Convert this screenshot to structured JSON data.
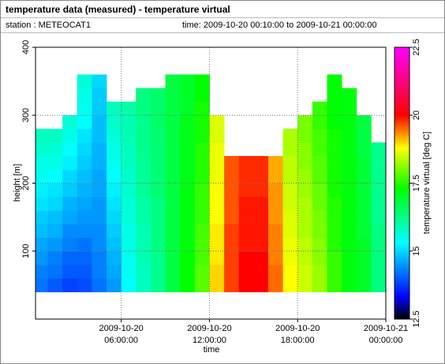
{
  "chart_data": {
    "type": "heatmap",
    "title": "temperature data (measured) - temperature virtual",
    "station": "station : METEOCAT1",
    "period": "time: 2009-10-20 00:10:00 to 2009-10-21 00:00:00",
    "xlabel": "time",
    "ylabel": "height [m]",
    "zlabel": "temperature virtual [deg C]",
    "x": [
      "2009-10-20 00:10:00",
      "2009-10-20 01:00:00",
      "2009-10-20 02:00:00",
      "2009-10-20 03:00:00",
      "2009-10-20 04:00:00",
      "2009-10-20 05:00:00",
      "2009-10-20 06:00:00",
      "2009-10-20 07:00:00",
      "2009-10-20 08:00:00",
      "2009-10-20 09:00:00",
      "2009-10-20 10:00:00",
      "2009-10-20 11:00:00",
      "2009-10-20 12:00:00",
      "2009-10-20 13:00:00",
      "2009-10-20 14:00:00",
      "2009-10-20 15:00:00",
      "2009-10-20 16:00:00",
      "2009-10-20 17:00:00",
      "2009-10-20 18:00:00",
      "2009-10-20 19:00:00",
      "2009-10-20 20:00:00",
      "2009-10-20 21:00:00",
      "2009-10-20 22:00:00",
      "2009-10-20 23:00:00",
      "2009-10-21 00:00:00"
    ],
    "y": [
      40,
      60,
      80,
      100,
      120,
      140,
      160,
      180,
      200,
      220,
      240,
      260,
      280,
      300,
      320,
      340,
      360
    ],
    "values": [
      [
        14.2,
        14.3,
        14.5,
        14.6,
        14.8,
        14.9,
        15.1,
        15.2,
        15.4,
        15.5,
        15.7,
        15.8,
        null,
        null,
        null,
        null
      ],
      [
        14.0,
        14.2,
        14.3,
        14.5,
        14.7,
        14.8,
        15.0,
        15.1,
        15.3,
        15.5,
        15.6,
        15.8,
        null,
        null,
        null,
        null
      ],
      [
        13.8,
        14.0,
        14.1,
        14.3,
        14.4,
        14.6,
        14.7,
        14.9,
        15.0,
        15.2,
        15.3,
        15.5,
        15.6,
        null,
        null,
        null
      ],
      [
        13.9,
        14.0,
        14.1,
        14.2,
        14.4,
        14.5,
        14.6,
        14.7,
        14.8,
        14.9,
        15.0,
        15.1,
        15.3,
        15.4,
        15.5,
        15.6
      ],
      [
        14.2,
        14.3,
        14.3,
        14.4,
        14.4,
        14.5,
        14.5,
        14.6,
        14.6,
        14.7,
        14.7,
        14.8,
        14.8,
        14.9,
        14.9,
        15.0
      ],
      [
        14.5,
        14.6,
        14.7,
        14.8,
        14.9,
        15.0,
        15.1,
        15.2,
        15.3,
        15.4,
        15.5,
        15.6,
        15.7,
        15.8,
        null,
        null
      ],
      [
        15.3,
        15.4,
        15.4,
        15.5,
        15.5,
        15.6,
        15.6,
        15.7,
        15.7,
        15.8,
        15.8,
        15.9,
        15.9,
        16.0,
        null,
        null
      ],
      [
        15.8,
        15.8,
        15.9,
        15.9,
        15.9,
        16.0,
        16.0,
        16.1,
        16.1,
        16.1,
        16.2,
        16.2,
        16.2,
        16.3,
        16.3,
        null
      ],
      [
        16.2,
        16.2,
        16.2,
        16.3,
        16.3,
        16.3,
        16.3,
        16.4,
        16.4,
        16.4,
        16.4,
        16.4,
        16.5,
        16.5,
        16.5,
        null
      ],
      [
        16.8,
        16.8,
        16.8,
        16.8,
        16.8,
        16.8,
        16.8,
        16.8,
        16.8,
        16.8,
        16.8,
        16.8,
        16.8,
        16.8,
        16.8,
        16.8
      ],
      [
        17.3,
        17.3,
        17.3,
        17.2,
        17.2,
        17.2,
        17.2,
        17.2,
        17.1,
        17.1,
        17.1,
        17.1,
        17.1,
        17.0,
        17.0,
        17.0
      ],
      [
        17.8,
        17.8,
        17.7,
        17.7,
        17.7,
        17.6,
        17.6,
        17.6,
        17.5,
        17.5,
        17.5,
        17.4,
        17.4,
        17.4,
        17.3,
        17.3
      ],
      [
        19.0,
        19.0,
        18.9,
        18.9,
        18.9,
        18.8,
        18.8,
        18.8,
        18.7,
        18.7,
        18.7,
        18.6,
        18.6,
        null,
        null,
        null
      ],
      [
        19.7,
        19.7,
        19.7,
        19.7,
        19.7,
        19.6,
        19.6,
        19.6,
        19.6,
        19.6,
        null,
        null,
        null,
        null,
        null,
        null
      ],
      [
        20.0,
        20.0,
        20.0,
        19.9,
        19.9,
        19.9,
        19.9,
        19.8,
        19.8,
        19.8,
        null,
        null,
        null,
        null,
        null,
        null
      ],
      [
        20.0,
        20.0,
        20.0,
        19.9,
        19.9,
        19.9,
        19.9,
        19.8,
        19.8,
        19.8,
        null,
        null,
        null,
        null,
        null,
        null
      ],
      [
        19.5,
        19.5,
        19.4,
        19.4,
        19.4,
        19.3,
        19.3,
        19.3,
        19.2,
        19.2,
        null,
        null,
        null,
        null,
        null,
        null
      ],
      [
        18.8,
        18.8,
        18.7,
        18.7,
        18.6,
        18.6,
        18.5,
        18.5,
        18.4,
        18.4,
        18.3,
        18.3,
        null,
        null,
        null,
        null
      ],
      [
        18.5,
        18.5,
        18.4,
        18.4,
        18.3,
        18.3,
        18.3,
        18.2,
        18.2,
        18.1,
        18.1,
        18.0,
        18.0,
        null,
        null,
        null
      ],
      [
        18.2,
        18.2,
        18.1,
        18.1,
        18.0,
        18.0,
        17.9,
        17.9,
        17.8,
        17.8,
        17.7,
        17.7,
        17.6,
        17.6,
        null,
        null
      ],
      [
        17.6,
        17.6,
        17.6,
        17.5,
        17.5,
        17.5,
        17.5,
        17.4,
        17.4,
        17.4,
        17.4,
        17.4,
        17.3,
        17.3,
        17.3,
        17.3
      ],
      [
        17.2,
        17.2,
        17.2,
        17.2,
        17.2,
        17.2,
        17.2,
        17.2,
        17.2,
        17.2,
        17.2,
        17.2,
        17.2,
        17.2,
        17.2,
        null
      ],
      [
        17.0,
        17.0,
        17.0,
        17.0,
        16.9,
        16.9,
        16.9,
        16.9,
        16.9,
        16.9,
        16.8,
        16.8,
        16.8,
        null,
        null,
        null
      ],
      [
        16.3,
        16.3,
        16.3,
        16.3,
        16.3,
        16.2,
        16.2,
        16.2,
        16.2,
        16.2,
        16.2,
        null,
        null,
        null,
        null,
        null
      ]
    ],
    "xlim": [
      "2009-10-20 00:10:00",
      "2009-10-21 00:00:00"
    ],
    "xticks": [
      {
        "value": "2009-10-20 06:00:00",
        "label": "2009-10-20\n06:00:00"
      },
      {
        "value": "2009-10-20 12:00:00",
        "label": "2009-10-20\n12:00:00"
      },
      {
        "value": "2009-10-20 18:00:00",
        "label": "2009-10-20\n18:00:00"
      },
      {
        "value": "2009-10-21 00:00:00",
        "label": "2009-10-21\n00:00:00"
      }
    ],
    "ylim": [
      0,
      400
    ],
    "yticks": [
      100,
      200,
      300,
      400
    ],
    "zlim": [
      12.5,
      22.5
    ],
    "zticks": [
      12.5,
      15,
      17.5,
      20,
      22.5
    ],
    "colormap": [
      {
        "value": 12.5,
        "color": "#000000"
      },
      {
        "value": 13.3,
        "color": "#0000ff"
      },
      {
        "value": 15.3,
        "color": "#00ffff"
      },
      {
        "value": 17.3,
        "color": "#00ff00"
      },
      {
        "value": 18.8,
        "color": "#ffff00"
      },
      {
        "value": 20,
        "color": "#ff0000"
      },
      {
        "value": 22.5,
        "color": "#ff00ff"
      }
    ],
    "grid": true
  }
}
